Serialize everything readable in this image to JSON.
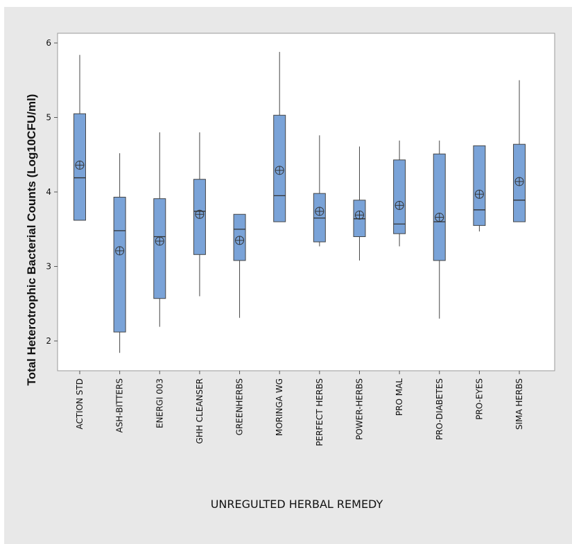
{
  "chart_data": {
    "type": "boxplot",
    "xlabel": "UNREGULTED HERBAL REMEDY",
    "ylabel": "Total Heterotrophic Bacterial Counts (Log10CFU/ml)",
    "ylim": [
      1.6,
      6.1
    ],
    "yticks": [
      "2",
      "3",
      "4",
      "5",
      "6"
    ],
    "box_color": "#7aa3d8",
    "grid": false,
    "mean_marker": "circle-with-cross",
    "categories": [
      "ACTION STD",
      "ASH-BITTERS",
      "ENERGI 003",
      "GHH CLEANSER",
      "GREENHERBS",
      "MORINGA WG",
      "PERFECT HERBS",
      "POWER-HERBS",
      "PRO MAL",
      "PRO-DIABETES",
      "PRO-EYES",
      "SIMA HERBS"
    ],
    "series": [
      {
        "min": 3.62,
        "q1": 3.62,
        "median": 4.19,
        "q3": 5.05,
        "max": 5.84,
        "mean": 4.36
      },
      {
        "min": 1.84,
        "q1": 2.12,
        "median": 3.48,
        "q3": 3.93,
        "max": 4.52,
        "mean": 3.21
      },
      {
        "min": 2.19,
        "q1": 2.57,
        "median": 3.4,
        "q3": 3.91,
        "max": 4.8,
        "mean": 3.34
      },
      {
        "min": 2.6,
        "q1": 3.16,
        "median": 3.74,
        "q3": 4.17,
        "max": 4.8,
        "mean": 3.7
      },
      {
        "min": 2.31,
        "q1": 3.08,
        "median": 3.5,
        "q3": 3.7,
        "max": 3.7,
        "mean": 3.35
      },
      {
        "min": 3.6,
        "q1": 3.6,
        "median": 3.95,
        "q3": 5.03,
        "max": 5.88,
        "mean": 4.29
      },
      {
        "min": 3.27,
        "q1": 3.33,
        "median": 3.65,
        "q3": 3.98,
        "max": 4.76,
        "mean": 3.74
      },
      {
        "min": 3.08,
        "q1": 3.4,
        "median": 3.64,
        "q3": 3.89,
        "max": 4.61,
        "mean": 3.69
      },
      {
        "min": 3.27,
        "q1": 3.44,
        "median": 3.57,
        "q3": 4.43,
        "max": 4.69,
        "mean": 3.82
      },
      {
        "min": 2.3,
        "q1": 3.08,
        "median": 3.6,
        "q3": 4.51,
        "max": 4.69,
        "mean": 3.66
      },
      {
        "min": 3.47,
        "q1": 3.55,
        "median": 3.76,
        "q3": 4.62,
        "max": 4.62,
        "mean": 3.97
      },
      {
        "min": 3.6,
        "q1": 3.6,
        "median": 3.89,
        "q3": 4.64,
        "max": 5.5,
        "mean": 4.14
      }
    ]
  }
}
